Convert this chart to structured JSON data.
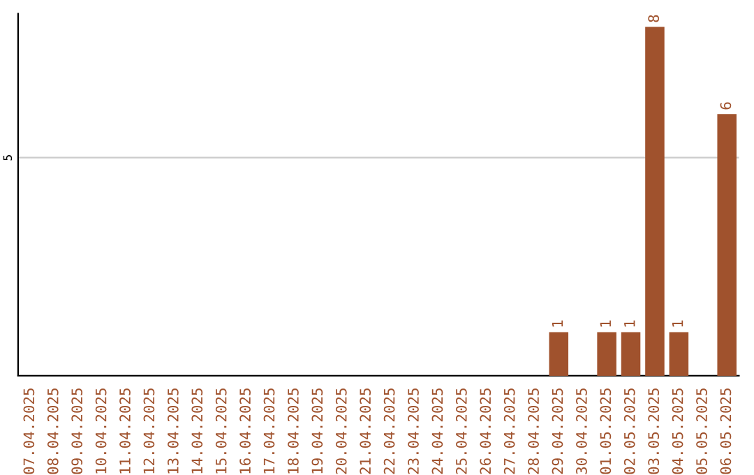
{
  "chart_data": {
    "type": "bar",
    "categories": [
      "07.04.2025",
      "08.04.2025",
      "09.04.2025",
      "10.04.2025",
      "11.04.2025",
      "12.04.2025",
      "13.04.2025",
      "14.04.2025",
      "15.04.2025",
      "16.04.2025",
      "17.04.2025",
      "18.04.2025",
      "19.04.2025",
      "20.04.2025",
      "21.04.2025",
      "22.04.2025",
      "23.04.2025",
      "24.04.2025",
      "25.04.2025",
      "26.04.2025",
      "27.04.2025",
      "28.04.2025",
      "29.04.2025",
      "30.04.2025",
      "01.05.2025",
      "02.05.2025",
      "03.05.2025",
      "04.05.2025",
      "05.05.2025",
      "06.05.2025"
    ],
    "values": [
      null,
      null,
      null,
      null,
      null,
      null,
      null,
      null,
      null,
      null,
      null,
      null,
      null,
      null,
      null,
      null,
      null,
      null,
      null,
      null,
      null,
      null,
      1,
      null,
      1,
      1,
      8,
      1,
      null,
      6
    ],
    "data_labels": true,
    "color": "#a0522d",
    "ylim": [
      0,
      8.3
    ],
    "yticks": [
      5
    ],
    "grid": "y"
  }
}
